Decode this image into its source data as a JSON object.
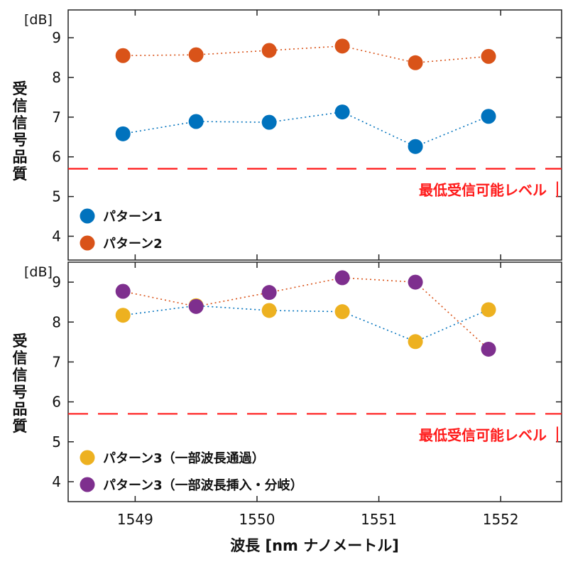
{
  "colors": {
    "pattern1": "#0072BD",
    "pattern2": "#D95319",
    "pattern3_pass": "#EDB120",
    "pattern3_adddrop": "#7E2F8E",
    "threshold": "#FF1A1A"
  },
  "xaxis": {
    "label": "波長 [nm ナノメートル]",
    "xlim": [
      1548.45,
      1552.5
    ],
    "ticks": [
      1549,
      1550,
      1551,
      1552
    ],
    "tick_labels": [
      "1549",
      "1550",
      "1551",
      "1552"
    ]
  },
  "chart_data": [
    {
      "type": "scatter",
      "unit": "[dB]",
      "ylabel": "受信信号品質",
      "ylim": [
        3.4,
        9.7
      ],
      "yticks": [
        4,
        5,
        6,
        7,
        8,
        9
      ],
      "ytick_labels": [
        "4",
        "5",
        "6",
        "7",
        "8",
        "9"
      ],
      "x": [
        1548.9,
        1549.5,
        1550.1,
        1550.7,
        1551.3,
        1551.9
      ],
      "series": [
        {
          "name": "パターン1",
          "color_key": "pattern1",
          "values": [
            6.58,
            6.89,
            6.87,
            7.13,
            6.26,
            7.02
          ]
        },
        {
          "name": "パターン2",
          "color_key": "pattern2",
          "values": [
            8.55,
            8.57,
            8.68,
            8.79,
            8.37,
            8.53
          ]
        }
      ],
      "threshold": {
        "value": 5.7,
        "label": "最低受信可能レベル"
      },
      "legend_position": "bottom-left",
      "grid": false
    },
    {
      "type": "scatter",
      "unit": "[dB]",
      "ylabel": "受信信号品質",
      "ylim": [
        3.5,
        9.5
      ],
      "yticks": [
        4,
        5,
        6,
        7,
        8,
        9
      ],
      "ytick_labels": [
        "4",
        "5",
        "6",
        "7",
        "8",
        "9"
      ],
      "x": [
        1548.9,
        1549.5,
        1550.1,
        1550.7,
        1551.3,
        1551.9
      ],
      "series": [
        {
          "name": "パターン3（一部波長通過）",
          "color_key": "pattern3_pass",
          "line_color_key": "pattern1",
          "values": [
            8.17,
            8.41,
            8.29,
            8.26,
            7.51,
            8.31
          ]
        },
        {
          "name": "パターン3（一部波長挿入・分岐）",
          "color_key": "pattern3_adddrop",
          "line_color_key": "pattern2",
          "values": [
            8.77,
            8.39,
            8.74,
            9.11,
            9.0,
            7.32
          ]
        }
      ],
      "threshold": {
        "value": 5.7,
        "label": "最低受信可能レベル"
      },
      "legend_position": "bottom-left",
      "grid": false
    }
  ]
}
